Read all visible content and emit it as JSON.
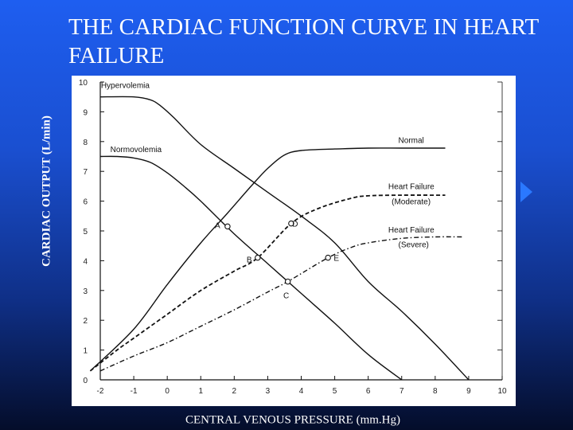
{
  "slide": {
    "title": "THE CARDIAC FUNCTION CURVE IN HEART FAILURE"
  },
  "colors": {
    "background_top": "#1e5ef0",
    "background_bottom": "#040d2a",
    "plot_background": "#ffffff",
    "curve": "#111111"
  },
  "chart_data": {
    "type": "line",
    "title": "THE CARDIAC FUNCTION CURVE IN HEART FAILURE",
    "xlabel": "CENTRAL VENOUS  PRESSURE (mm.Hg)",
    "ylabel": "CARDIAC OUTPUT (L/min)",
    "xlim": [
      -2,
      10
    ],
    "ylim": [
      0,
      10
    ],
    "x_ticks": [
      -2,
      -1,
      0,
      1,
      2,
      3,
      4,
      5,
      6,
      7,
      8,
      9,
      10
    ],
    "y_ticks": [
      0,
      1,
      2,
      3,
      4,
      5,
      6,
      7,
      8,
      9,
      10
    ],
    "grid": false,
    "series": [
      {
        "name": "Hypervolemia",
        "kind": "venous-return",
        "dash": "solid",
        "x": [
          -2,
          -1,
          -0.5,
          -0.2,
          0.2,
          1,
          2,
          3,
          4,
          5,
          6,
          7,
          8,
          9
        ],
        "y": [
          9.5,
          9.5,
          9.4,
          9.2,
          8.8,
          7.9,
          7.1,
          6.3,
          5.5,
          4.6,
          3.3,
          2.3,
          1.2,
          0
        ]
      },
      {
        "name": "Normovolemia",
        "kind": "venous-return",
        "dash": "solid",
        "x": [
          -2,
          -1.5,
          -1,
          -0.5,
          0,
          0.5,
          1,
          2,
          3,
          4,
          5,
          6,
          7
        ],
        "y": [
          7.5,
          7.5,
          7.45,
          7.3,
          6.95,
          6.5,
          6.0,
          4.9,
          3.9,
          2.9,
          1.9,
          0.85,
          0
        ]
      },
      {
        "name": "Normal",
        "kind": "cardiac-function",
        "dash": "solid",
        "x": [
          -2.3,
          -1,
          0,
          1,
          1.8,
          2.5,
          3,
          3.5,
          4,
          5,
          6,
          7,
          8,
          8.3
        ],
        "y": [
          0.3,
          1.7,
          3.2,
          4.6,
          5.6,
          6.5,
          7.1,
          7.55,
          7.7,
          7.75,
          7.78,
          7.78,
          7.78,
          7.78
        ]
      },
      {
        "name": "Heart Failure (Moderate)",
        "kind": "cardiac-function",
        "dash": "dashed",
        "x": [
          -2.3,
          -1.5,
          -1,
          0,
          1,
          2,
          2.7,
          3.7,
          4.5,
          5.5,
          6,
          7,
          8,
          8.3
        ],
        "y": [
          0.3,
          1.0,
          1.4,
          2.2,
          3.0,
          3.65,
          4.1,
          5.25,
          5.75,
          6.1,
          6.18,
          6.2,
          6.2,
          6.2
        ]
      },
      {
        "name": "Heart Failure (Severe)",
        "kind": "cardiac-function",
        "dash": "dashdot",
        "x": [
          -2,
          -1,
          0,
          1,
          2,
          3,
          3.6,
          4.8,
          5.5,
          6,
          7,
          8,
          8.8
        ],
        "y": [
          0.3,
          0.8,
          1.25,
          1.8,
          2.35,
          2.95,
          3.3,
          4.1,
          4.45,
          4.6,
          4.75,
          4.8,
          4.8
        ]
      }
    ],
    "annotations": [
      {
        "label": "Hypervolemia",
        "x": -1.98,
        "y": 9.8
      },
      {
        "label": "Normovolemia",
        "x": -1.7,
        "y": 7.65
      },
      {
        "label": "Normal",
        "x": 6.9,
        "y": 7.95
      },
      {
        "label": "Heart Failure",
        "x": 6.6,
        "y": 6.4
      },
      {
        "label": "(Moderate)",
        "x": 6.7,
        "y": 5.9
      },
      {
        "label": "Heart Failure",
        "x": 6.6,
        "y": 4.95
      },
      {
        "label": "(Severe)",
        "x": 6.9,
        "y": 4.45
      }
    ],
    "points": [
      {
        "label": "A",
        "x": 1.8,
        "y": 5.15,
        "label_dx": -0.3,
        "label_dy": 0.05
      },
      {
        "label": "B",
        "x": 2.7,
        "y": 4.1,
        "label_dx": -0.25,
        "label_dy": -0.05
      },
      {
        "label": "C",
        "x": 3.6,
        "y": 3.3,
        "label_dx": -0.05,
        "label_dy": -0.45
      },
      {
        "label": "D",
        "x": 3.7,
        "y": 5.25,
        "label_dx": 0.12,
        "label_dy": 0.0
      },
      {
        "label": "E",
        "x": 4.8,
        "y": 4.1,
        "label_dx": 0.25,
        "label_dy": 0.0
      }
    ]
  }
}
